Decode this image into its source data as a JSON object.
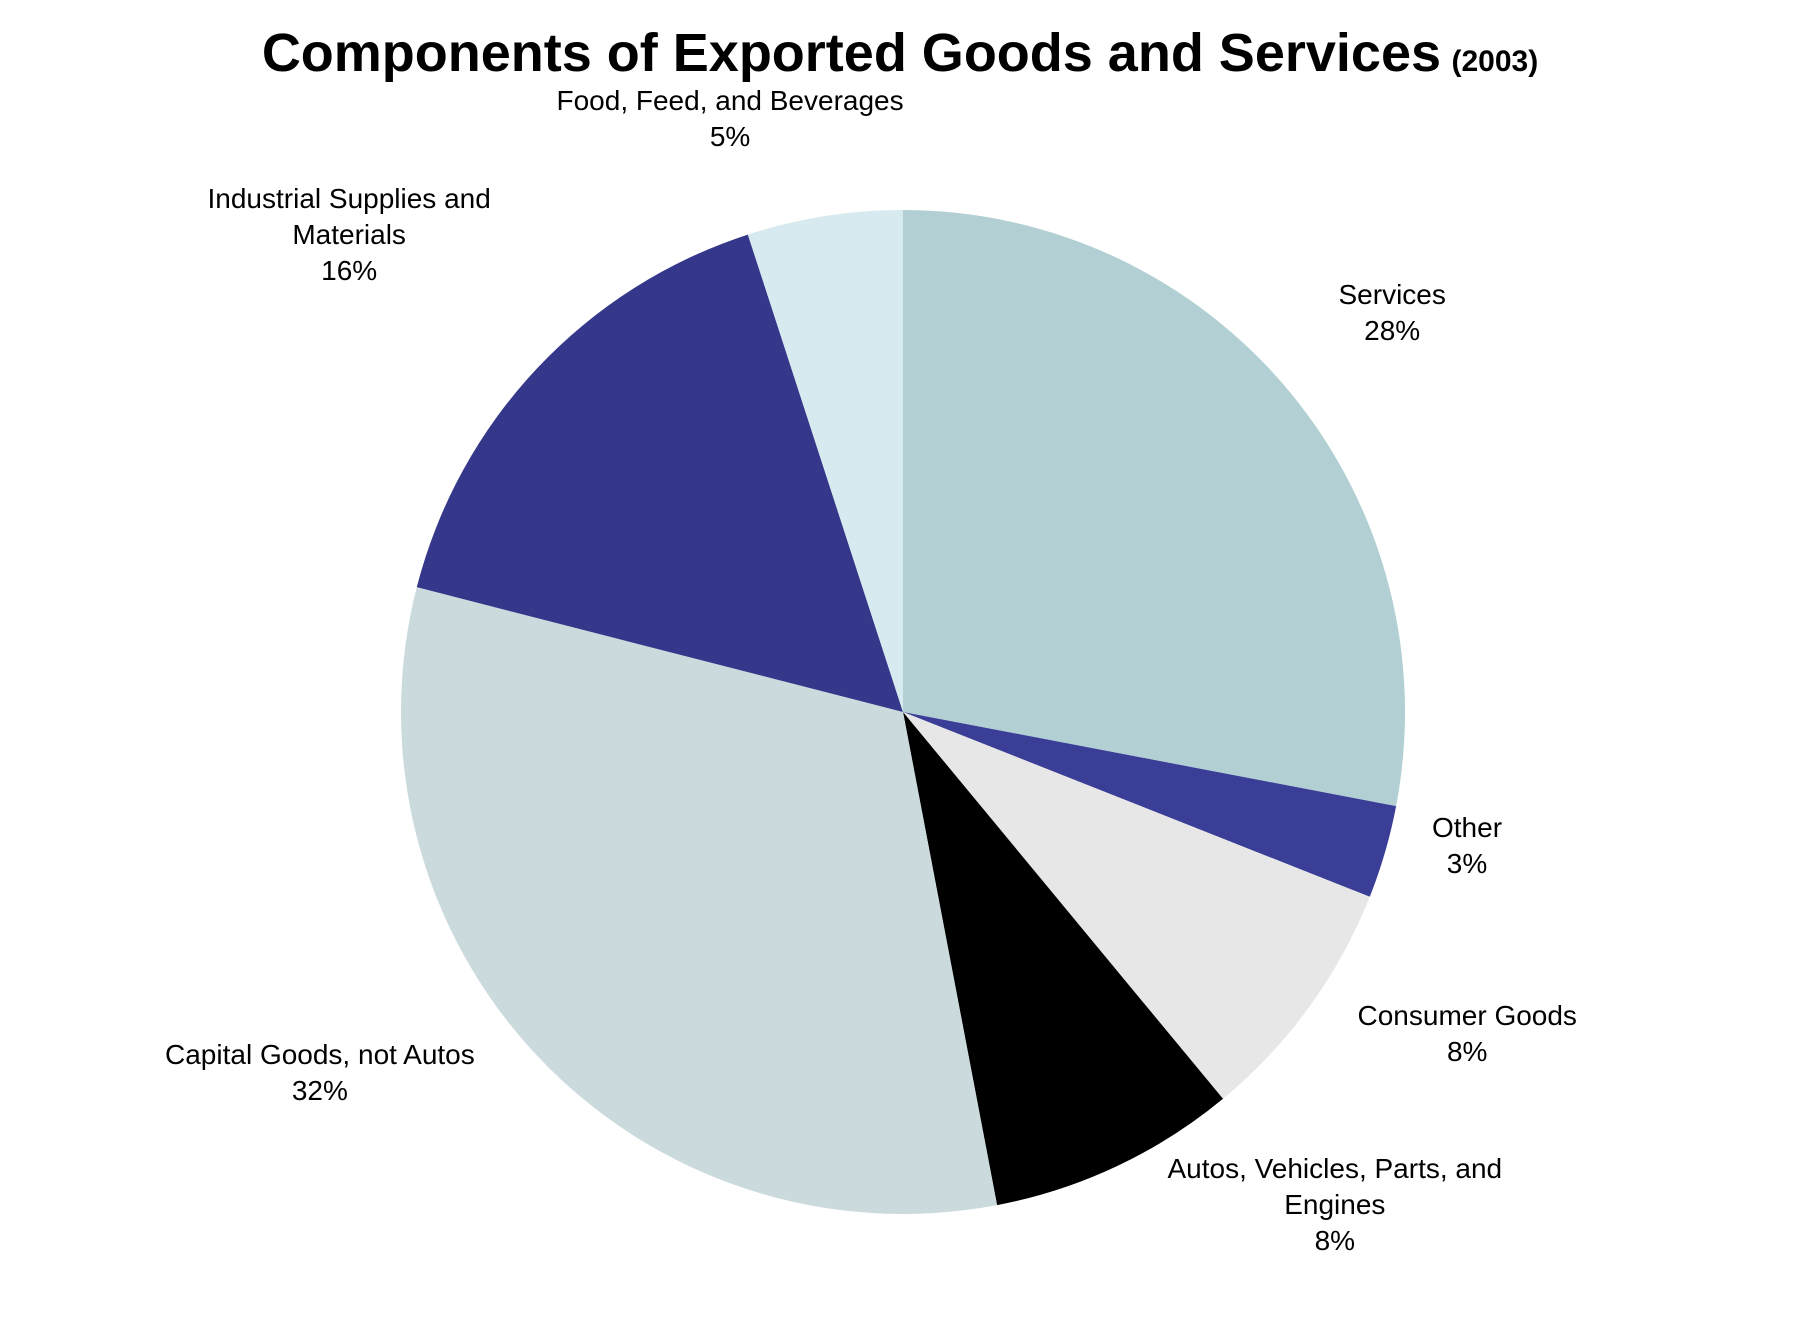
{
  "chart_data": {
    "type": "pie",
    "title": "Components of Exported Goods and Services",
    "subtitle": "(2003)",
    "start_angle": "12 o'clock",
    "direction": "clockwise",
    "legend": "none",
    "slices": [
      {
        "name": "Services",
        "value": 28,
        "value_label": "28%",
        "color": "#B2D0D4"
      },
      {
        "name": "Other",
        "value": 3,
        "value_label": "3%",
        "color": "#3A3E96"
      },
      {
        "name": "Consumer Goods",
        "value": 8,
        "value_label": "8%",
        "color": "#E7E7E7"
      },
      {
        "name": "Autos, Vehicles, Parts, and\nEngines",
        "value": 8,
        "value_label": "8%",
        "color": "#000000"
      },
      {
        "name": "Capital Goods, not Autos",
        "value": 32,
        "value_label": "32%",
        "color": "#CBDADC"
      },
      {
        "name": "Industrial Supplies and\nMaterials",
        "value": 16,
        "value_label": "16%",
        "color": "#34378A"
      },
      {
        "name": "Food, Feed, and Beverages",
        "value": 5,
        "value_label": "5%",
        "color": "#D6EAEF"
      }
    ]
  }
}
